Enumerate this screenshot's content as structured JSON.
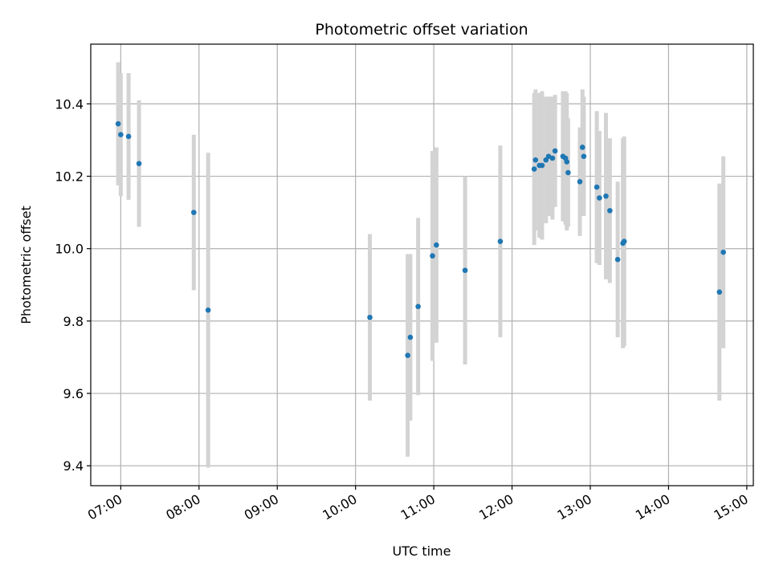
{
  "chart_data": {
    "type": "scatter",
    "title": "Photometric offset variation",
    "xlabel": "UTC time",
    "ylabel": "Photometric offset",
    "x_ticks": [
      "07:00",
      "08:00",
      "09:00",
      "10:00",
      "11:00",
      "12:00",
      "13:00",
      "14:00",
      "15:00"
    ],
    "y_ticks": [
      "9.4",
      "9.6",
      "9.8",
      "10.0",
      "10.2",
      "10.4"
    ],
    "xlim": [
      "06:37",
      "15:05"
    ],
    "ylim": [
      9.345,
      10.565
    ],
    "grid": true,
    "colors": {
      "marker": "#1f77b4",
      "errorbar": "#d3d3d3",
      "grid": "#b0b0b0"
    },
    "series": [
      {
        "points": [
          {
            "time": "06:58",
            "y": 10.345,
            "err": 0.17
          },
          {
            "time": "07:00",
            "y": 10.315,
            "err": 0.17
          },
          {
            "time": "07:06",
            "y": 10.31,
            "err": 0.175
          },
          {
            "time": "07:14",
            "y": 10.235,
            "err": 0.175
          },
          {
            "time": "07:56",
            "y": 10.1,
            "err": 0.215
          },
          {
            "time": "08:07",
            "y": 9.83,
            "err": 0.435
          },
          {
            "time": "10:11",
            "y": 9.81,
            "err": 0.23
          },
          {
            "time": "10:40",
            "y": 9.705,
            "err": 0.28
          },
          {
            "time": "10:42",
            "y": 9.755,
            "err": 0.23
          },
          {
            "time": "10:48",
            "y": 9.84,
            "err": 0.245
          },
          {
            "time": "10:59",
            "y": 9.98,
            "err": 0.29
          },
          {
            "time": "11:02",
            "y": 10.01,
            "err": 0.27
          },
          {
            "time": "11:24",
            "y": 9.94,
            "err": 0.26
          },
          {
            "time": "11:51",
            "y": 10.02,
            "err": 0.265
          },
          {
            "time": "12:17",
            "y": 10.22,
            "err": 0.21
          },
          {
            "time": "12:18",
            "y": 10.245,
            "err": 0.195
          },
          {
            "time": "12:21",
            "y": 10.23,
            "err": 0.2
          },
          {
            "time": "12:23",
            "y": 10.23,
            "err": 0.205
          },
          {
            "time": "12:26",
            "y": 10.245,
            "err": 0.175
          },
          {
            "time": "12:28",
            "y": 10.255,
            "err": 0.165
          },
          {
            "time": "12:31",
            "y": 10.25,
            "err": 0.17
          },
          {
            "time": "12:33",
            "y": 10.27,
            "err": 0.155
          },
          {
            "time": "12:39",
            "y": 10.255,
            "err": 0.18
          },
          {
            "time": "12:41",
            "y": 10.25,
            "err": 0.185
          },
          {
            "time": "12:42",
            "y": 10.24,
            "err": 0.19
          },
          {
            "time": "12:43",
            "y": 10.21,
            "err": 0.15
          },
          {
            "time": "12:52",
            "y": 10.185,
            "err": 0.15
          },
          {
            "time": "12:54",
            "y": 10.28,
            "err": 0.16
          },
          {
            "time": "12:55",
            "y": 10.255,
            "err": 0.165
          },
          {
            "time": "13:05",
            "y": 10.17,
            "err": 0.21
          },
          {
            "time": "13:07",
            "y": 10.14,
            "err": 0.185
          },
          {
            "time": "13:12",
            "y": 10.145,
            "err": 0.23
          },
          {
            "time": "13:15",
            "y": 10.105,
            "err": 0.2
          },
          {
            "time": "13:21",
            "y": 9.97,
            "err": 0.215
          },
          {
            "time": "13:25",
            "y": 10.015,
            "err": 0.29
          },
          {
            "time": "13:26",
            "y": 10.02,
            "err": 0.29
          },
          {
            "time": "14:39",
            "y": 9.88,
            "err": 0.3
          },
          {
            "time": "14:42",
            "y": 9.99,
            "err": 0.265
          }
        ]
      }
    ]
  }
}
